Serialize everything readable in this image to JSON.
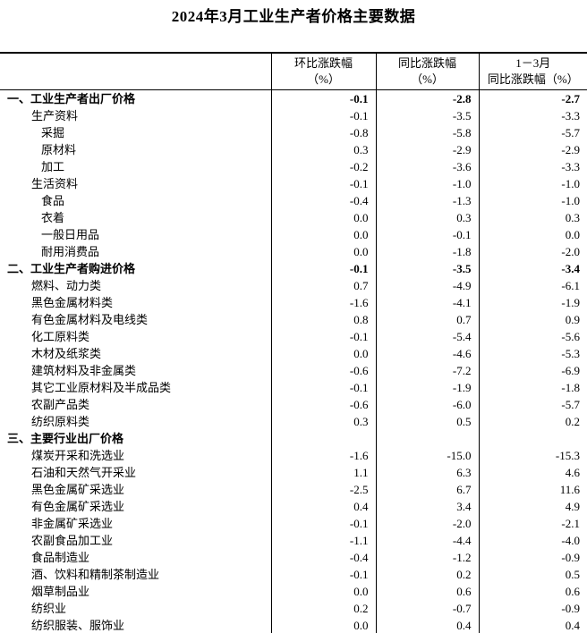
{
  "page": {
    "title": "2024年3月工业生产者价格主要数据"
  },
  "table": {
    "columns": [
      {
        "line1": "环比涨跌幅",
        "line2": "（%）"
      },
      {
        "line1": "同比涨跌幅",
        "line2": "（%）"
      },
      {
        "line1": "1－3月",
        "line2": "同比涨跌幅（%）"
      }
    ],
    "rows": [
      {
        "label": "一、工业生产者出厂价格",
        "indent": 0,
        "bold": true,
        "values": [
          "-0.1",
          "-2.8",
          "-2.7"
        ]
      },
      {
        "label": "生产资料",
        "indent": 1,
        "bold": false,
        "values": [
          "-0.1",
          "-3.5",
          "-3.3"
        ]
      },
      {
        "label": "采掘",
        "indent": 2,
        "bold": false,
        "values": [
          "-0.8",
          "-5.8",
          "-5.7"
        ]
      },
      {
        "label": "原材料",
        "indent": 2,
        "bold": false,
        "values": [
          "0.3",
          "-2.9",
          "-2.9"
        ]
      },
      {
        "label": "加工",
        "indent": 2,
        "bold": false,
        "values": [
          "-0.2",
          "-3.6",
          "-3.3"
        ]
      },
      {
        "label": "生活资料",
        "indent": 1,
        "bold": false,
        "values": [
          "-0.1",
          "-1.0",
          "-1.0"
        ]
      },
      {
        "label": "食品",
        "indent": 2,
        "bold": false,
        "values": [
          "-0.4",
          "-1.3",
          "-1.0"
        ]
      },
      {
        "label": "衣着",
        "indent": 2,
        "bold": false,
        "values": [
          "0.0",
          "0.3",
          "0.3"
        ]
      },
      {
        "label": "一般日用品",
        "indent": 2,
        "bold": false,
        "values": [
          "0.0",
          "-0.1",
          "0.0"
        ]
      },
      {
        "label": "耐用消费品",
        "indent": 2,
        "bold": false,
        "values": [
          "0.0",
          "-1.8",
          "-2.0"
        ]
      },
      {
        "label": "二、工业生产者购进价格",
        "indent": 0,
        "bold": true,
        "values": [
          "-0.1",
          "-3.5",
          "-3.4"
        ]
      },
      {
        "label": "燃料、动力类",
        "indent": 1,
        "bold": false,
        "values": [
          "0.7",
          "-4.9",
          "-6.1"
        ]
      },
      {
        "label": "黑色金属材料类",
        "indent": 1,
        "bold": false,
        "values": [
          "-1.6",
          "-4.1",
          "-1.9"
        ]
      },
      {
        "label": "有色金属材料及电线类",
        "indent": 1,
        "bold": false,
        "values": [
          "0.8",
          "0.7",
          "0.9"
        ]
      },
      {
        "label": "化工原料类",
        "indent": 1,
        "bold": false,
        "values": [
          "-0.1",
          "-5.4",
          "-5.6"
        ]
      },
      {
        "label": "木材及纸浆类",
        "indent": 1,
        "bold": false,
        "values": [
          "0.0",
          "-4.6",
          "-5.3"
        ]
      },
      {
        "label": "建筑材料及非金属类",
        "indent": 1,
        "bold": false,
        "values": [
          "-0.6",
          "-7.2",
          "-6.9"
        ]
      },
      {
        "label": "其它工业原材料及半成品类",
        "indent": 1,
        "bold": false,
        "values": [
          "-0.1",
          "-1.9",
          "-1.8"
        ]
      },
      {
        "label": "农副产品类",
        "indent": 1,
        "bold": false,
        "values": [
          "-0.6",
          "-6.0",
          "-5.7"
        ]
      },
      {
        "label": "纺织原料类",
        "indent": 1,
        "bold": false,
        "values": [
          "0.3",
          "0.5",
          "0.2"
        ]
      },
      {
        "label": "三、主要行业出厂价格",
        "indent": 0,
        "bold": true,
        "values": [
          "",
          "",
          ""
        ]
      },
      {
        "label": "煤炭开采和洗选业",
        "indent": 1,
        "bold": false,
        "values": [
          "-1.6",
          "-15.0",
          "-15.3"
        ]
      },
      {
        "label": "石油和天然气开采业",
        "indent": 1,
        "bold": false,
        "values": [
          "1.1",
          "6.3",
          "4.6"
        ]
      },
      {
        "label": "黑色金属矿采选业",
        "indent": 1,
        "bold": false,
        "values": [
          "-2.5",
          "6.7",
          "11.6"
        ]
      },
      {
        "label": "有色金属矿采选业",
        "indent": 1,
        "bold": false,
        "values": [
          "0.4",
          "3.4",
          "4.9"
        ]
      },
      {
        "label": "非金属矿采选业",
        "indent": 1,
        "bold": false,
        "values": [
          "-0.1",
          "-2.0",
          "-2.1"
        ]
      },
      {
        "label": "农副食品加工业",
        "indent": 1,
        "bold": false,
        "values": [
          "-1.1",
          "-4.4",
          "-4.0"
        ]
      },
      {
        "label": "食品制造业",
        "indent": 1,
        "bold": false,
        "values": [
          "-0.4",
          "-1.2",
          "-0.9"
        ]
      },
      {
        "label": "酒、饮料和精制茶制造业",
        "indent": 1,
        "bold": false,
        "values": [
          "-0.1",
          "0.2",
          "0.5"
        ]
      },
      {
        "label": "烟草制品业",
        "indent": 1,
        "bold": false,
        "values": [
          "0.0",
          "0.6",
          "0.6"
        ]
      },
      {
        "label": "纺织业",
        "indent": 1,
        "bold": false,
        "values": [
          "0.2",
          "-0.7",
          "-0.9"
        ]
      },
      {
        "label": "纺织服装、服饰业",
        "indent": 1,
        "bold": false,
        "values": [
          "0.0",
          "0.4",
          "0.4"
        ]
      }
    ]
  }
}
